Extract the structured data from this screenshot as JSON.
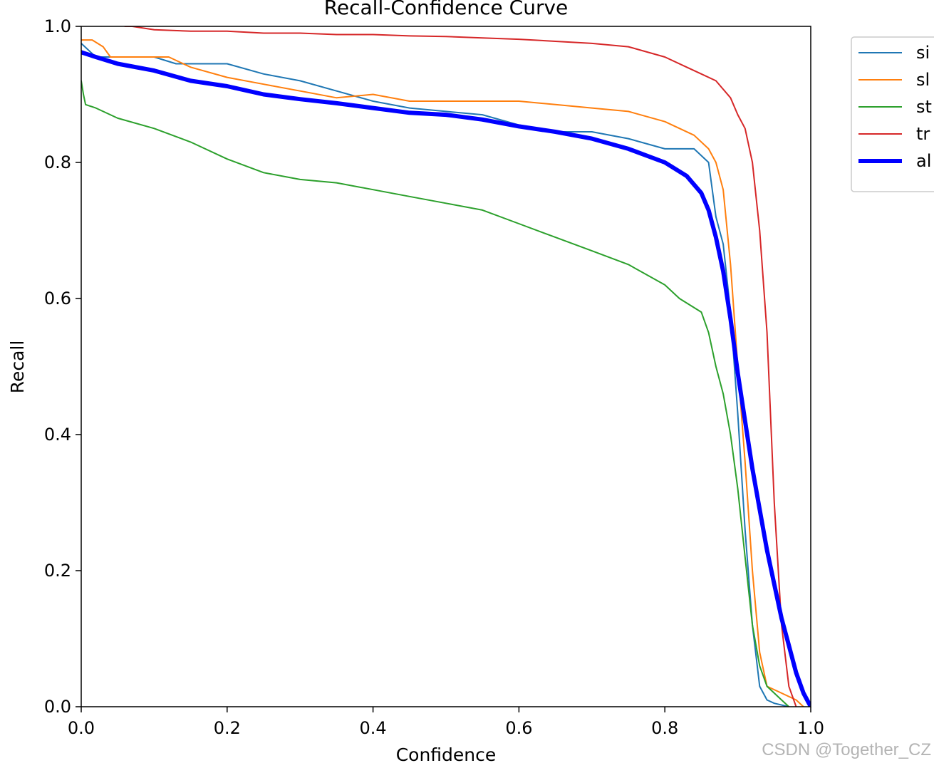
{
  "watermark": "CSDN @Together_CZ",
  "chart_data": {
    "type": "line",
    "title": "Recall-Confidence Curve",
    "xlabel": "Confidence",
    "ylabel": "Recall",
    "xlim": [
      0.0,
      1.0
    ],
    "ylim": [
      0.0,
      1.0
    ],
    "xticks": [
      "0.0",
      "0.2",
      "0.4",
      "0.6",
      "0.8",
      "1.0"
    ],
    "yticks": [
      "0.0",
      "0.2",
      "0.4",
      "0.6",
      "0.8",
      "1.0"
    ],
    "grid": false,
    "legend_position": "outside-top-right",
    "series": [
      {
        "name": "si",
        "color": "#1f77b4",
        "width": "thin",
        "x": [
          0.0,
          0.005,
          0.01,
          0.02,
          0.05,
          0.1,
          0.13,
          0.15,
          0.2,
          0.25,
          0.3,
          0.35,
          0.4,
          0.45,
          0.5,
          0.55,
          0.6,
          0.65,
          0.7,
          0.75,
          0.8,
          0.84,
          0.86,
          0.87,
          0.88,
          0.89,
          0.9,
          0.91,
          0.92,
          0.93,
          0.94,
          0.95,
          0.97
        ],
        "y": [
          0.975,
          0.97,
          0.965,
          0.955,
          0.955,
          0.955,
          0.945,
          0.945,
          0.945,
          0.93,
          0.92,
          0.905,
          0.89,
          0.88,
          0.875,
          0.87,
          0.855,
          0.845,
          0.845,
          0.835,
          0.82,
          0.82,
          0.8,
          0.72,
          0.68,
          0.58,
          0.43,
          0.26,
          0.12,
          0.03,
          0.01,
          0.005,
          0.0
        ]
      },
      {
        "name": "sl",
        "color": "#ff7f0e",
        "width": "thin",
        "x": [
          0.0,
          0.015,
          0.03,
          0.04,
          0.1,
          0.12,
          0.15,
          0.2,
          0.25,
          0.3,
          0.35,
          0.4,
          0.45,
          0.5,
          0.55,
          0.6,
          0.65,
          0.7,
          0.75,
          0.8,
          0.84,
          0.86,
          0.87,
          0.88,
          0.89,
          0.9,
          0.91,
          0.92,
          0.93,
          0.94,
          0.96,
          0.98,
          0.99
        ],
        "y": [
          0.98,
          0.98,
          0.97,
          0.955,
          0.955,
          0.955,
          0.94,
          0.925,
          0.915,
          0.905,
          0.895,
          0.9,
          0.89,
          0.89,
          0.89,
          0.89,
          0.885,
          0.88,
          0.875,
          0.86,
          0.84,
          0.82,
          0.8,
          0.76,
          0.65,
          0.5,
          0.36,
          0.2,
          0.08,
          0.03,
          0.02,
          0.01,
          0.0
        ]
      },
      {
        "name": "st",
        "color": "#2ca02c",
        "width": "thin",
        "x": [
          0.0,
          0.003,
          0.006,
          0.02,
          0.05,
          0.1,
          0.15,
          0.2,
          0.25,
          0.3,
          0.35,
          0.4,
          0.45,
          0.5,
          0.55,
          0.6,
          0.65,
          0.7,
          0.75,
          0.8,
          0.82,
          0.85,
          0.86,
          0.87,
          0.88,
          0.89,
          0.9,
          0.91,
          0.92,
          0.93,
          0.94,
          0.96,
          0.97
        ],
        "y": [
          0.92,
          0.9,
          0.885,
          0.88,
          0.865,
          0.85,
          0.83,
          0.805,
          0.785,
          0.775,
          0.77,
          0.76,
          0.75,
          0.74,
          0.73,
          0.71,
          0.69,
          0.67,
          0.65,
          0.62,
          0.6,
          0.58,
          0.55,
          0.5,
          0.46,
          0.4,
          0.32,
          0.22,
          0.12,
          0.06,
          0.03,
          0.01,
          0.0
        ]
      },
      {
        "name": "tr",
        "color": "#d62728",
        "width": "thin",
        "x": [
          0.06,
          0.07,
          0.1,
          0.15,
          0.2,
          0.25,
          0.3,
          0.35,
          0.4,
          0.45,
          0.5,
          0.55,
          0.6,
          0.65,
          0.7,
          0.75,
          0.8,
          0.83,
          0.85,
          0.87,
          0.89,
          0.9,
          0.91,
          0.92,
          0.93,
          0.94,
          0.95,
          0.96,
          0.97,
          0.98
        ],
        "y": [
          1.0,
          1.0,
          0.995,
          0.993,
          0.993,
          0.99,
          0.99,
          0.988,
          0.988,
          0.986,
          0.985,
          0.983,
          0.981,
          0.978,
          0.975,
          0.97,
          0.955,
          0.94,
          0.93,
          0.92,
          0.895,
          0.87,
          0.85,
          0.8,
          0.7,
          0.55,
          0.3,
          0.12,
          0.03,
          0.0
        ]
      },
      {
        "name": "al",
        "color": "#0000ff",
        "width": "thick",
        "x": [
          0.0,
          0.02,
          0.05,
          0.1,
          0.15,
          0.2,
          0.25,
          0.3,
          0.35,
          0.4,
          0.45,
          0.5,
          0.55,
          0.6,
          0.65,
          0.7,
          0.75,
          0.8,
          0.83,
          0.85,
          0.86,
          0.87,
          0.88,
          0.89,
          0.9,
          0.91,
          0.92,
          0.93,
          0.94,
          0.95,
          0.96,
          0.97,
          0.98,
          0.99,
          1.0
        ],
        "y": [
          0.962,
          0.955,
          0.945,
          0.935,
          0.92,
          0.912,
          0.9,
          0.893,
          0.887,
          0.88,
          0.873,
          0.87,
          0.863,
          0.853,
          0.845,
          0.835,
          0.82,
          0.8,
          0.78,
          0.755,
          0.73,
          0.69,
          0.64,
          0.57,
          0.49,
          0.42,
          0.35,
          0.29,
          0.23,
          0.18,
          0.13,
          0.09,
          0.05,
          0.02,
          0.0
        ]
      }
    ]
  }
}
